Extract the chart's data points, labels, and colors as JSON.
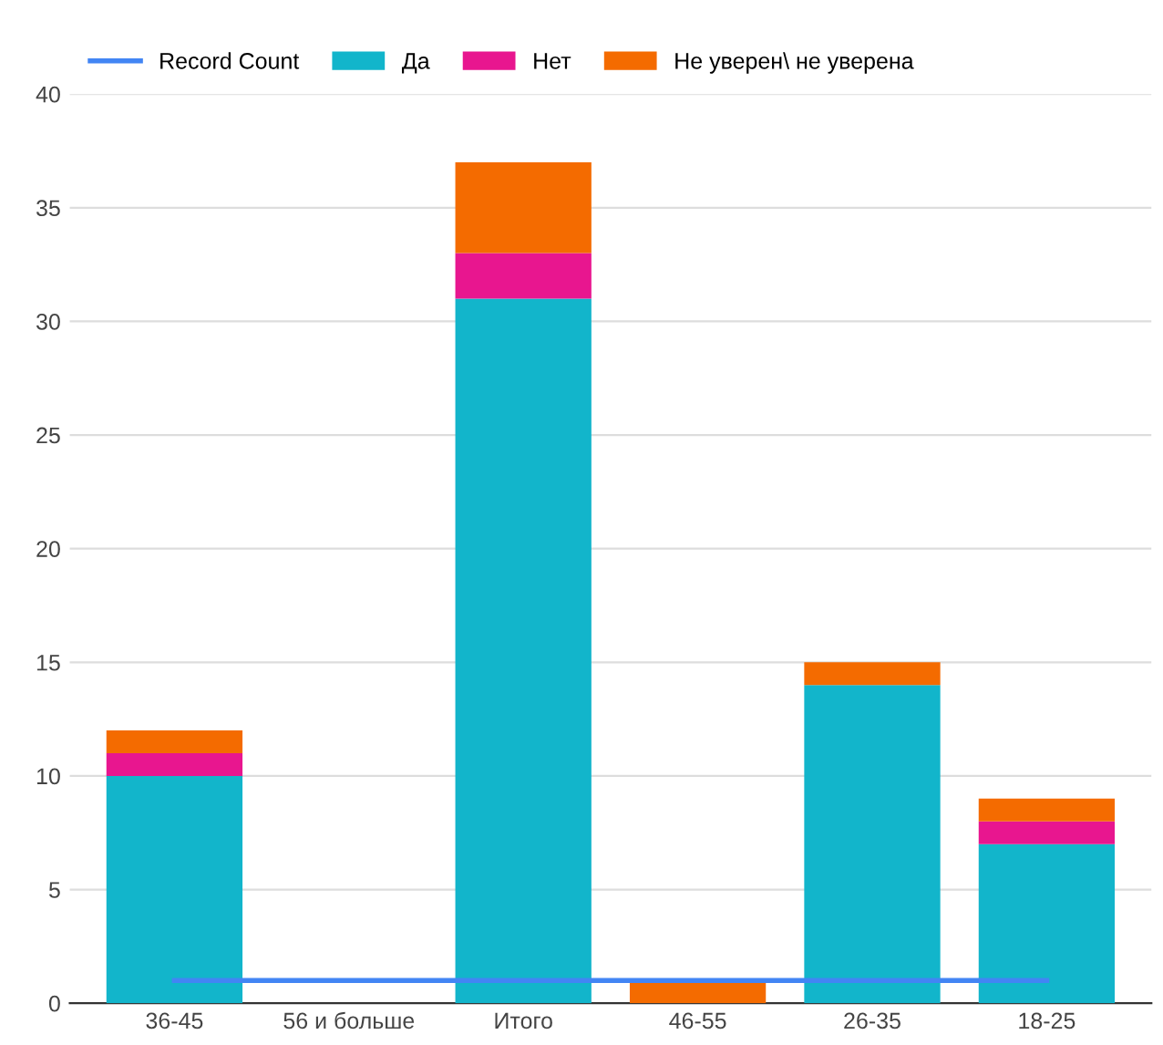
{
  "chart_data": {
    "type": "bar",
    "stacked": true,
    "categories": [
      "36-45",
      "56 и больше",
      "Итого",
      "46-55",
      "26-35",
      "18-25"
    ],
    "series": [
      {
        "name": "Record Count",
        "type": "line",
        "color": "#4285f4",
        "values": [
          1,
          1,
          1,
          1,
          1,
          1
        ]
      },
      {
        "name": "Да",
        "color": "#12b5cb",
        "values": [
          10,
          0,
          31,
          0,
          14,
          7
        ]
      },
      {
        "name": "Нет",
        "color": "#e8168f",
        "values": [
          1,
          0,
          2,
          0,
          0,
          1
        ]
      },
      {
        "name": "Не уверен\\ не уверена",
        "color": "#f46b00",
        "values": [
          1,
          0,
          4,
          1,
          1,
          1
        ]
      }
    ],
    "ylim": [
      0,
      40
    ],
    "yticks": [
      0,
      5,
      10,
      15,
      20,
      25,
      30,
      35,
      40
    ],
    "grid": "y",
    "legend": "top left"
  }
}
